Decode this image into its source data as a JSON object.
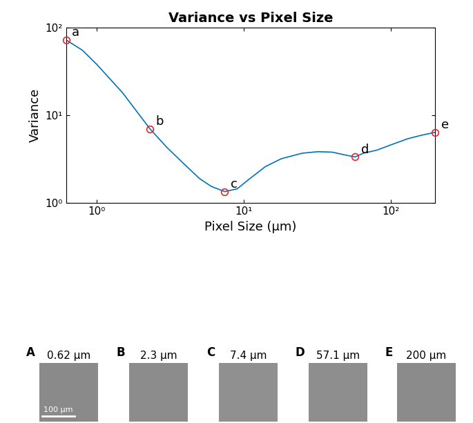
{
  "chart_data": {
    "type": "line",
    "title": "Variance vs Pixel Size",
    "x_label": "Pixel Size (µm)",
    "y_label": "Variance",
    "log": true,
    "grid": false,
    "color": "#0072bd",
    "x": [
      0.62,
      0.8,
      1.0,
      1.5,
      2.3,
      3.0,
      4.0,
      5.0,
      6.0,
      7.4,
      9.0,
      11.0,
      14.0,
      18.0,
      25.0,
      32.0,
      40.0,
      48.0,
      57.1,
      65.0,
      80.0,
      100.0,
      130.0,
      160.0,
      200.0
    ],
    "values": [
      72,
      55,
      38,
      18,
      7,
      4.3,
      2.7,
      1.9,
      1.55,
      1.35,
      1.45,
      1.9,
      2.6,
      3.2,
      3.7,
      3.85,
      3.8,
      3.55,
      3.35,
      3.7,
      4.0,
      4.6,
      5.4,
      5.9,
      6.4
    ],
    "xlim": [
      0.62,
      200
    ],
    "ylim": [
      1,
      100
    ],
    "xticks": [
      {
        "value": 1,
        "label": "10⁰"
      },
      {
        "value": 10,
        "label": "10¹"
      },
      {
        "value": 100,
        "label": "10²"
      }
    ],
    "yticks": [
      {
        "value": 1,
        "label": "10⁰"
      },
      {
        "value": 10,
        "label": "10¹"
      },
      {
        "value": 100,
        "label": "10²"
      }
    ],
    "points": {
      "color": "#e8242b",
      "marker": "o",
      "labels": [
        "a",
        "b",
        "c",
        "d",
        "e"
      ],
      "x": [
        0.62,
        2.3,
        7.4,
        57.1,
        200
      ],
      "values": [
        72,
        7,
        1.35,
        3.35,
        6.4
      ]
    },
    "panels": [
      {
        "letter": "A",
        "title": "0.62 µm"
      },
      {
        "letter": "B",
        "title": "2.3 µm"
      },
      {
        "letter": "C",
        "title": "7.4 µm"
      },
      {
        "letter": "D",
        "title": "57.1 µm"
      },
      {
        "letter": "E",
        "title": "200 µm"
      }
    ],
    "scale_bar": "100 µm"
  }
}
